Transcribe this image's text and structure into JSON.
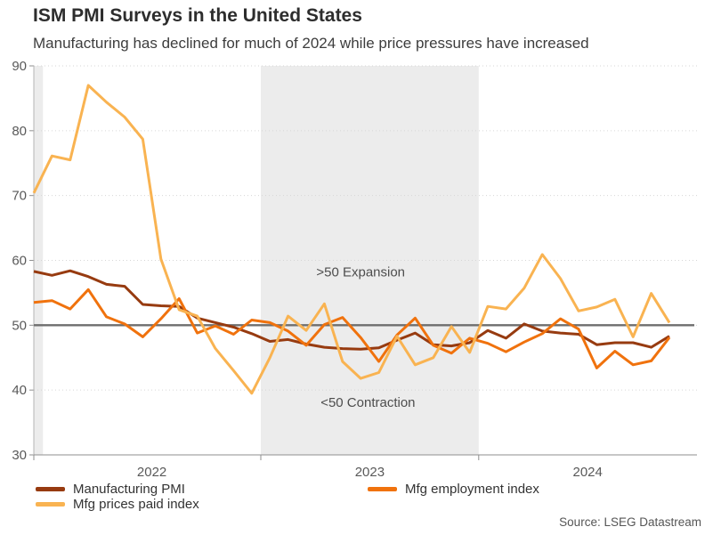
{
  "chart_data": {
    "type": "line",
    "title": "ISM PMI Surveys in the United States",
    "subtitle": "Manufacturing has declined for much of 2024 while price pressures have increased",
    "source": "Source: LSEG Datastream",
    "ylim": [
      30,
      90
    ],
    "yticks": [
      30,
      40,
      50,
      60,
      70,
      80,
      90
    ],
    "grid": "dotted horizontal gridlines",
    "reference_line": 50,
    "legend_position": "bottom-left",
    "x": [
      "2021-12",
      "2022-01",
      "2022-02",
      "2022-03",
      "2022-04",
      "2022-05",
      "2022-06",
      "2022-07",
      "2022-08",
      "2022-09",
      "2022-10",
      "2022-11",
      "2022-12",
      "2023-01",
      "2023-02",
      "2023-03",
      "2023-04",
      "2023-05",
      "2023-06",
      "2023-07",
      "2023-08",
      "2023-09",
      "2023-10",
      "2023-11",
      "2023-12",
      "2024-01",
      "2024-02",
      "2024-03",
      "2024-04",
      "2024-05",
      "2024-06",
      "2024-07",
      "2024-08",
      "2024-09",
      "2024-10",
      "2024-11"
    ],
    "year_labels": [
      {
        "label": "2022",
        "center_index": 6.5
      },
      {
        "label": "2023",
        "center_index": 18.5
      },
      {
        "label": "2024",
        "center_index": 30.5
      }
    ],
    "axis_tick_indices": [
      -0.04,
      12.5,
      24.5
    ],
    "shaded_bands": [
      {
        "start_index": -0.5,
        "end_index": 0.5
      },
      {
        "start_index": 12.5,
        "end_index": 24.5
      }
    ],
    "band_color": "#ececec",
    "annotations": [
      {
        "text": ">50 Expansion",
        "x_index": 18.0,
        "y_value": 58.2
      },
      {
        "text": "<50 Contraction",
        "x_index": 18.4,
        "y_value": 38.1
      }
    ],
    "series": [
      {
        "name": "Manufacturing PMI",
        "color": "#973B10",
        "values": [
          58.3,
          57.7,
          58.4,
          57.5,
          56.3,
          56.0,
          53.2,
          53.0,
          52.9,
          51.1,
          50.4,
          49.7,
          48.7,
          47.5,
          47.8,
          47.1,
          46.6,
          46.4,
          46.3,
          46.5,
          47.7,
          48.8,
          47.0,
          46.8,
          47.3,
          49.2,
          48.0,
          50.2,
          49.1,
          48.8,
          48.6,
          47.0,
          47.3,
          47.3,
          46.6,
          48.3
        ]
      },
      {
        "name": "Mfg employment index",
        "color": "#F0720D",
        "values": [
          53.5,
          53.8,
          52.5,
          55.5,
          51.3,
          50.2,
          48.2,
          51.0,
          54.1,
          48.8,
          49.9,
          48.6,
          50.8,
          50.4,
          49.1,
          46.9,
          50.1,
          51.2,
          48.1,
          44.4,
          48.5,
          51.1,
          46.9,
          45.7,
          48.0,
          47.2,
          45.9,
          47.4,
          48.7,
          51.0,
          49.4,
          43.4,
          46.0,
          43.9,
          44.5,
          48.1
        ]
      },
      {
        "name": "Mfg prices paid index",
        "color": "#F9B351",
        "values": [
          70.4,
          76.1,
          75.5,
          87.0,
          84.4,
          82.1,
          78.7,
          60.2,
          52.4,
          51.4,
          46.4,
          43.0,
          39.5,
          45.0,
          51.4,
          49.2,
          53.3,
          44.4,
          41.8,
          42.7,
          48.3,
          43.9,
          45.0,
          49.8,
          45.8,
          52.9,
          52.5,
          55.7,
          60.9,
          57.2,
          52.2,
          52.8,
          54.0,
          48.2,
          54.9,
          50.4
        ]
      }
    ],
    "styles": {
      "reference_line_color": "#6e6e6e",
      "gridline_color": "#d6d6d6",
      "left_spine_color": "#b5b5b5",
      "bottom_axis_color": "#8f8f8f"
    }
  }
}
